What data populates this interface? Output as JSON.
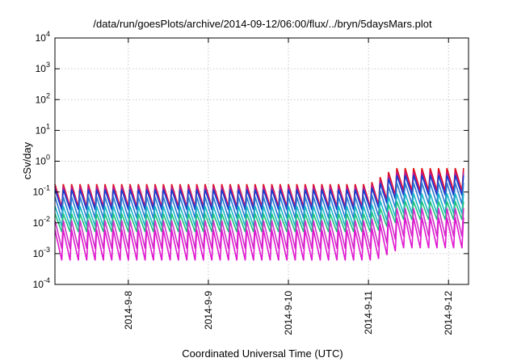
{
  "chart_data": {
    "type": "line",
    "title": "/data/run/goesPlots/archive/2014-09-12/06:00/flux/../bryn/5daysMars.plot",
    "xlabel": "Coordinated Universal Time (UTC)",
    "ylabel": "cSv/day",
    "yscale": "log",
    "ylim": [
      0.0001,
      10000
    ],
    "xlim": [
      "2014-09-07 02:00",
      "2014-09-12 06:00"
    ],
    "grid": true,
    "y_ticks": [
      {
        "base": "10",
        "exp": "-4",
        "value": 0.0001
      },
      {
        "base": "10",
        "exp": "-3",
        "value": 0.001
      },
      {
        "base": "10",
        "exp": "-2",
        "value": 0.01
      },
      {
        "base": "10",
        "exp": "-1",
        "value": 0.1
      },
      {
        "base": "10",
        "exp": "0",
        "value": 1
      },
      {
        "base": "10",
        "exp": "1",
        "value": 10
      },
      {
        "base": "10",
        "exp": "2",
        "value": 100
      },
      {
        "base": "10",
        "exp": "3",
        "value": 1000
      },
      {
        "base": "10",
        "exp": "4",
        "value": 10000
      }
    ],
    "x_ticks": [
      {
        "label": "2014-9-8",
        "value": "2014-09-08 00:00"
      },
      {
        "label": "2014-9-9",
        "value": "2014-09-09 00:00"
      },
      {
        "label": "2014-9-10",
        "value": "2014-09-10 00:00"
      },
      {
        "label": "2014-9-11",
        "value": "2014-09-11 00:00"
      },
      {
        "label": "2014-9-12",
        "value": "2014-09-12 00:00"
      }
    ],
    "oscillation_period_hours": 2.5,
    "series": [
      {
        "color": "#e0101a",
        "peaks_before": 0.18,
        "peaks_after": 0.6,
        "dip_ratio": 0.18
      },
      {
        "color": "#c01890",
        "peaks_before": 0.15,
        "peaks_after": 0.45,
        "dip_ratio": 0.2
      },
      {
        "color": "#1040d0",
        "peaks_before": 0.12,
        "peaks_after": 0.35,
        "dip_ratio": 0.22
      },
      {
        "color": "#2a7ad0",
        "peaks_before": 0.07,
        "peaks_after": 0.2,
        "dip_ratio": 0.2
      },
      {
        "color": "#18b8c8",
        "peaks_before": 0.035,
        "peaks_after": 0.09,
        "dip_ratio": 0.22
      },
      {
        "color": "#20c080",
        "peaks_before": 0.02,
        "peaks_after": 0.05,
        "dip_ratio": 0.25
      },
      {
        "color": "#d030c8",
        "peaks_before": 0.012,
        "peaks_after": 0.03,
        "dip_ratio": 0.12
      },
      {
        "color": "#e018d0",
        "peaks_before": 0.006,
        "peaks_after": 0.015,
        "dip_ratio": 0.1
      }
    ]
  }
}
